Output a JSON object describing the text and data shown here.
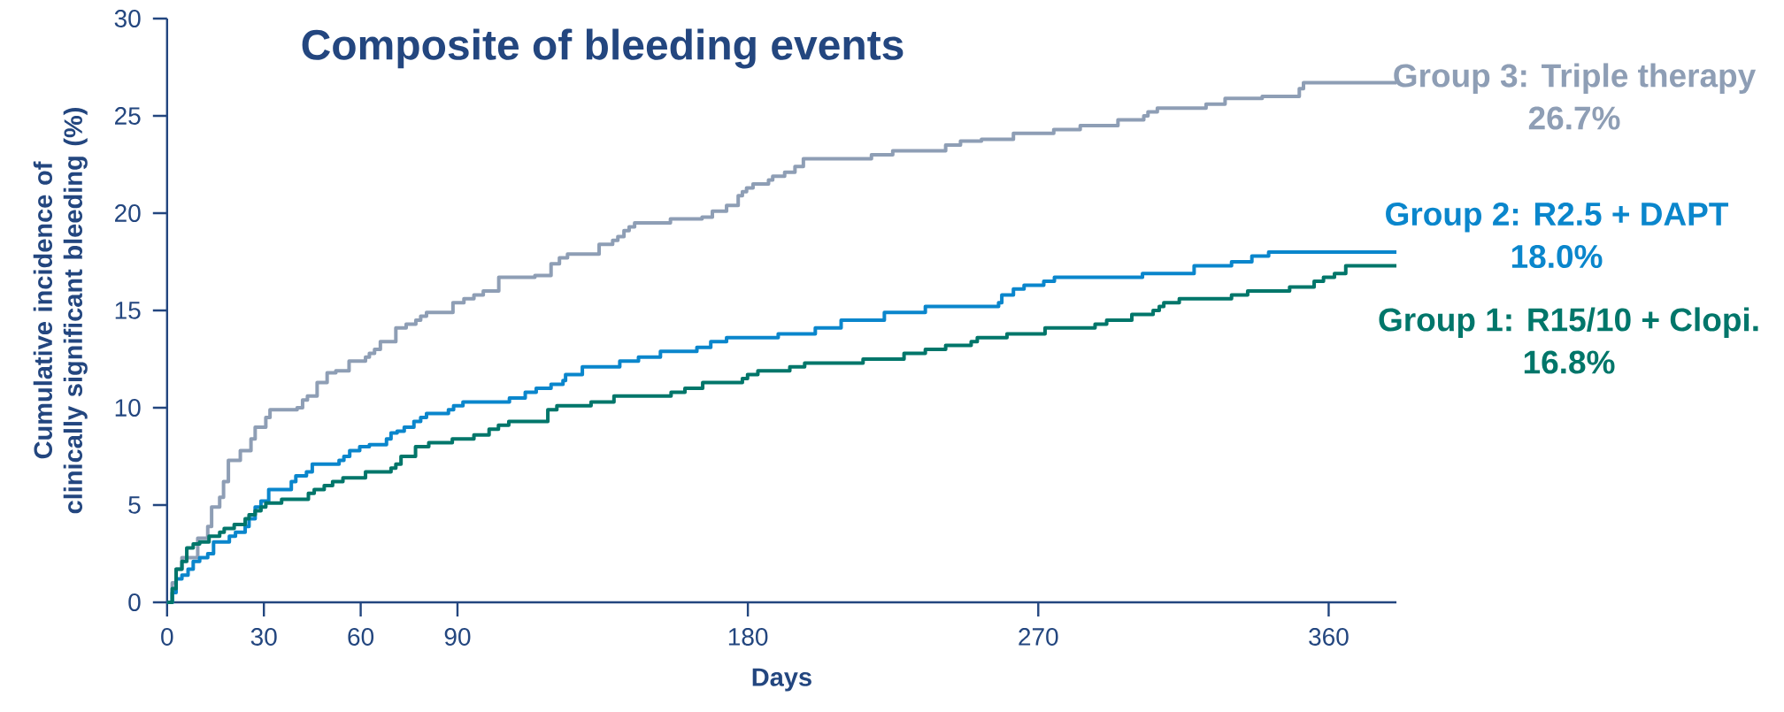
{
  "chart_data": {
    "type": "step",
    "title": "Composite of bleeding events",
    "xlabel": "Days",
    "ylabel": "Cumulative incidence of clinically significant bleeding (%)",
    "xlim": [
      0,
      381
    ],
    "ylim": [
      0,
      30
    ],
    "xticks": [
      0,
      30,
      60,
      90,
      180,
      270,
      360
    ],
    "yticks": [
      0,
      5,
      10,
      15,
      20,
      25,
      30
    ],
    "grid": false,
    "marker": "none",
    "line_style": "solid",
    "annotations": [
      "26.7%",
      "18.0%",
      "16.8%"
    ],
    "series": [
      {
        "name": "Group 3: Triple therapy",
        "color": "#8e9eb5",
        "x": [
          0,
          1.6,
          2.8,
          4.6,
          9.5,
          12.6,
          13.8,
          16.3,
          17.5,
          19,
          22.7,
          26,
          27.3,
          30.6,
          31.9,
          40.3,
          42,
          43.5,
          46.5,
          49.6,
          52.3,
          56.4,
          61.5,
          62.7,
          64.3,
          66.1,
          70.9,
          74.1,
          77.1,
          78.6,
          80.4,
          88.6,
          92,
          95.1,
          98,
          102.8,
          114,
          119,
          121.6,
          124.1,
          133.9,
          138.1,
          139.7,
          141.6,
          143.2,
          144.9,
          156,
          165.8,
          169,
          173.4,
          177,
          178.3,
          179.6,
          181.6,
          186.4,
          187.7,
          191.4,
          194.6,
          197.2,
          218.3,
          224.9,
          241.3,
          245.9,
          252.4,
          262.3,
          274.8,
          283,
          294.7,
          302.7,
          304,
          306.9,
          322,
          327.9,
          339.4,
          350.9,
          352.2,
          381
        ],
        "values": [
          0,
          1.0,
          1.7,
          2.3,
          3.3,
          3.9,
          4.9,
          5.4,
          6.2,
          7.3,
          7.8,
          8.4,
          9.0,
          9.5,
          9.9,
          10.0,
          10.4,
          10.6,
          11.3,
          11.8,
          11.9,
          12.4,
          12.6,
          12.8,
          13.0,
          13.4,
          14.1,
          14.3,
          14.5,
          14.7,
          14.9,
          15.4,
          15.6,
          15.8,
          16.0,
          16.7,
          16.8,
          17.4,
          17.7,
          17.9,
          18.4,
          18.6,
          18.8,
          19.1,
          19.3,
          19.5,
          19.7,
          19.8,
          20.1,
          20.4,
          20.9,
          21.1,
          21.3,
          21.5,
          21.7,
          21.9,
          22.1,
          22.4,
          22.8,
          23.0,
          23.2,
          23.5,
          23.7,
          23.8,
          24.1,
          24.3,
          24.5,
          24.8,
          25.0,
          25.2,
          25.4,
          25.6,
          25.9,
          26.0,
          26.4,
          26.7,
          26.7
        ]
      },
      {
        "name": "Group 2: R2.5 + DAPT",
        "color": "#0a86cc",
        "x": [
          0,
          1.6,
          2.8,
          4.6,
          6.5,
          8.1,
          10.1,
          12.6,
          14.4,
          19.3,
          21.2,
          24.2,
          25.4,
          27.3,
          29.1,
          31.5,
          38.5,
          39.9,
          43.2,
          45,
          53.3,
          54.8,
          56.6,
          59.7,
          62.7,
          68,
          69.4,
          71.3,
          73.5,
          76.5,
          78.6,
          80.4,
          87.2,
          88.8,
          91.7,
          106.1,
          111,
          114.4,
          119,
          122.7,
          123.5,
          128.7,
          140.3,
          146.1,
          152.9,
          164.2,
          168.5,
          173.4,
          189.4,
          200.9,
          208.9,
          222.3,
          235,
          257.7,
          258.7,
          262.3,
          265.6,
          271.7,
          275,
          302.3,
          318.3,
          329.9,
          336.2,
          341.4,
          381
        ],
        "values": [
          0,
          0.5,
          1.2,
          1.4,
          1.7,
          2.1,
          2.3,
          2.5,
          3.1,
          3.4,
          3.6,
          3.9,
          4.3,
          4.9,
          5.2,
          5.8,
          6.2,
          6.5,
          6.7,
          7.1,
          7.3,
          7.5,
          7.8,
          8.0,
          8.1,
          8.4,
          8.7,
          8.8,
          9.0,
          9.3,
          9.5,
          9.7,
          9.9,
          10.1,
          10.3,
          10.5,
          10.8,
          11.0,
          11.2,
          11.4,
          11.7,
          12.1,
          12.4,
          12.6,
          12.9,
          13.1,
          13.4,
          13.6,
          13.8,
          14.1,
          14.5,
          14.9,
          15.2,
          15.4,
          15.8,
          16.1,
          16.3,
          16.5,
          16.7,
          16.9,
          17.3,
          17.5,
          17.8,
          18.0,
          18.0
        ]
      },
      {
        "name": "Group 1: R15/10 + Clopi.",
        "color": "#00766a",
        "x": [
          0,
          1.6,
          2.8,
          4.6,
          6.1,
          8.1,
          10.1,
          13,
          16.3,
          17.7,
          20.8,
          24.2,
          25.4,
          27.3,
          29.1,
          30.6,
          35.5,
          43.8,
          45.6,
          48.7,
          51.3,
          54.5,
          61.5,
          69.4,
          70.9,
          72.5,
          77,
          81.1,
          88.4,
          95.1,
          99.8,
          102.7,
          105.9,
          118,
          120.8,
          131.4,
          138.5,
          156.2,
          160.5,
          166,
          178.3,
          179.9,
          183.1,
          193,
          197.6,
          215.7,
          228.4,
          235,
          241.3,
          249.2,
          251.1,
          260.3,
          272.1,
          287.6,
          291.2,
          299,
          305.6,
          307.5,
          308.9,
          313.7,
          329.9,
          334.9,
          347.9,
          355.5,
          358.4,
          361.8,
          365.3,
          381
        ],
        "values": [
          0,
          0.7,
          1.7,
          2.1,
          2.8,
          3.0,
          3.1,
          3.4,
          3.6,
          3.8,
          4.0,
          4.3,
          4.5,
          4.7,
          4.9,
          5.1,
          5.3,
          5.6,
          5.8,
          6.0,
          6.2,
          6.4,
          6.7,
          6.9,
          7.1,
          7.5,
          8.0,
          8.2,
          8.4,
          8.6,
          8.9,
          9.1,
          9.3,
          9.9,
          10.1,
          10.3,
          10.6,
          10.8,
          11.0,
          11.3,
          11.5,
          11.7,
          11.9,
          12.1,
          12.3,
          12.5,
          12.8,
          13.0,
          13.2,
          13.4,
          13.6,
          13.8,
          14.1,
          14.3,
          14.5,
          14.8,
          15.0,
          15.2,
          15.4,
          15.6,
          15.8,
          16.0,
          16.2,
          16.5,
          16.7,
          16.9,
          17.3,
          17.3
        ]
      }
    ]
  }
}
